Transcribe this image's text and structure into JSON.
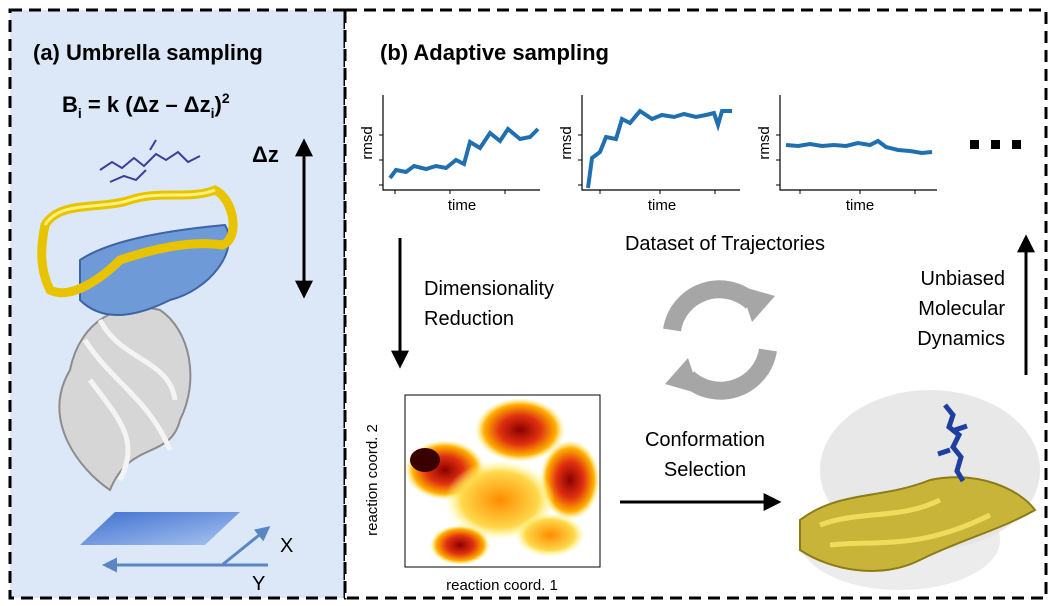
{
  "panel_a": {
    "title": "(a) Umbrella sampling",
    "formula": [
      "B",
      "i",
      " = k (Δz – Δz",
      "i",
      ")",
      "2"
    ],
    "dz_label": "Δz",
    "x_label": "X",
    "y_label": "Y"
  },
  "panel_b": {
    "title": "(b) Adaptive sampling",
    "plots": [
      {
        "y_label": "rmsd",
        "x_label": "time"
      },
      {
        "y_label": "rmsd",
        "x_label": "time"
      },
      {
        "y_label": "rmsd",
        "x_label": "time"
      }
    ],
    "dataset_label": "Dataset of Trajectories",
    "reduction_label": [
      "Dimensionality",
      "Reduction"
    ],
    "md_label": [
      "Unbiased",
      "Molecular",
      "Dynamics"
    ],
    "heatmap": {
      "y_label": "reaction coord. 2",
      "x_label": "reaction coord. 1"
    },
    "selection_label": [
      "Conformation",
      "Selection"
    ]
  }
}
